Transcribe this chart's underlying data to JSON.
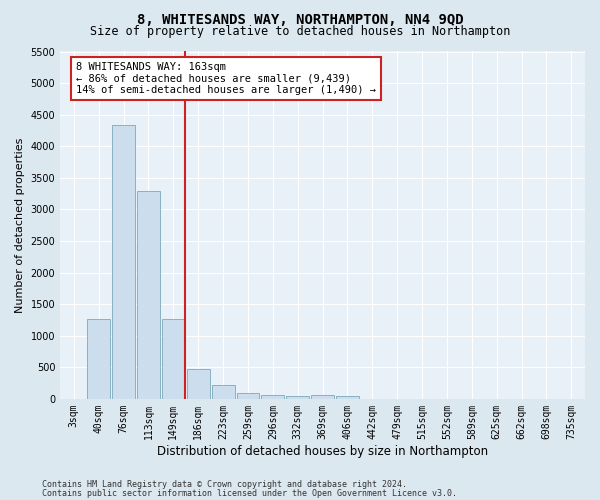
{
  "title": "8, WHITESANDS WAY, NORTHAMPTON, NN4 9QD",
  "subtitle": "Size of property relative to detached houses in Northampton",
  "xlabel": "Distribution of detached houses by size in Northampton",
  "ylabel": "Number of detached properties",
  "categories": [
    "3sqm",
    "40sqm",
    "76sqm",
    "113sqm",
    "149sqm",
    "186sqm",
    "223sqm",
    "259sqm",
    "296sqm",
    "332sqm",
    "369sqm",
    "406sqm",
    "442sqm",
    "479sqm",
    "515sqm",
    "552sqm",
    "589sqm",
    "625sqm",
    "662sqm",
    "698sqm",
    "735sqm"
  ],
  "bar_heights": [
    0,
    1270,
    4330,
    3290,
    1270,
    480,
    220,
    100,
    60,
    50,
    60,
    50,
    0,
    0,
    0,
    0,
    0,
    0,
    0,
    0,
    0
  ],
  "bar_color": "#ccdded",
  "bar_edge_color": "#7aaabb",
  "vline_color": "#cc2222",
  "annotation_text": "8 WHITESANDS WAY: 163sqm\n← 86% of detached houses are smaller (9,439)\n14% of semi-detached houses are larger (1,490) →",
  "annotation_box_color": "#ffffff",
  "annotation_box_edgecolor": "#cc2222",
  "ylim": [
    0,
    5500
  ],
  "yticks": [
    0,
    500,
    1000,
    1500,
    2000,
    2500,
    3000,
    3500,
    4000,
    4500,
    5000,
    5500
  ],
  "bg_color": "#dce8f0",
  "plot_bg_color": "#e8f0f8",
  "footer_line1": "Contains HM Land Registry data © Crown copyright and database right 2024.",
  "footer_line2": "Contains public sector information licensed under the Open Government Licence v3.0.",
  "title_fontsize": 10,
  "subtitle_fontsize": 8.5,
  "tick_fontsize": 7,
  "ylabel_fontsize": 8,
  "xlabel_fontsize": 8.5
}
